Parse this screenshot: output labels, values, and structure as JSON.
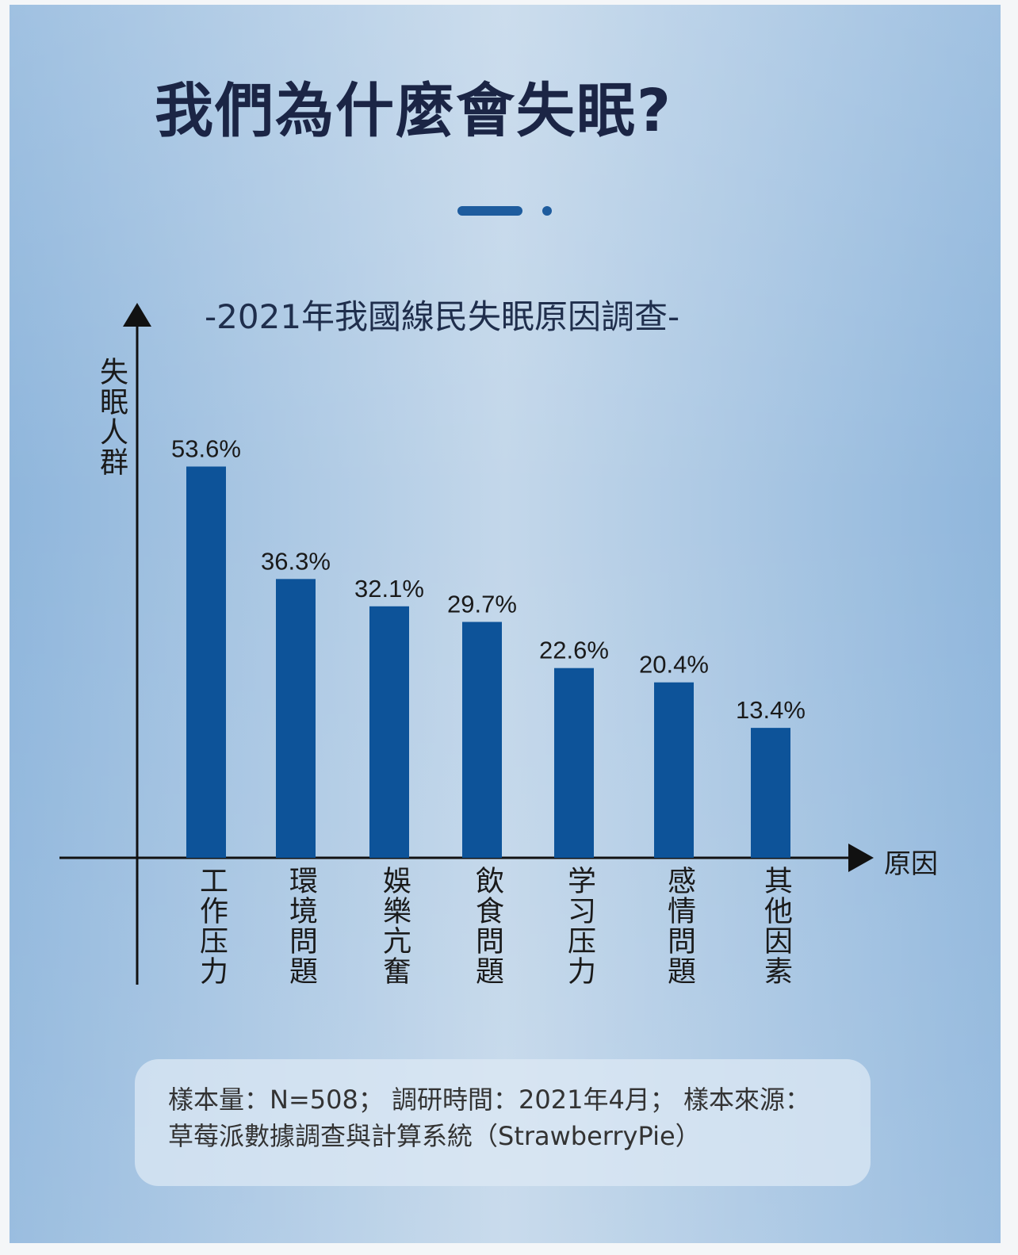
{
  "header": {
    "title": "我們為什麼會失眠?"
  },
  "chart_data": {
    "type": "bar",
    "title": "-2021年我國線民失眠原因調查-",
    "xlabel": "原因",
    "ylabel": "失眠人群",
    "categories": [
      "工作压力",
      "環境問題",
      "娛樂亢奮",
      "飲食問題",
      "学习压力",
      "感情問題",
      "其他因素"
    ],
    "values": [
      53.6,
      36.3,
      32.1,
      29.7,
      22.6,
      20.4,
      13.4
    ],
    "value_labels": [
      "53.6%",
      "36.3%",
      "32.1%",
      "29.7%",
      "22.6%",
      "20.4%",
      "13.4%"
    ],
    "unit": "%",
    "grid": false,
    "bar_color": "#0d5399"
  },
  "footer": {
    "line1": "樣本量：N=508； 調研時間：2021年4月； 樣本來源：",
    "line2": "草莓派數據調查與計算系統（StrawberryPie）"
  }
}
